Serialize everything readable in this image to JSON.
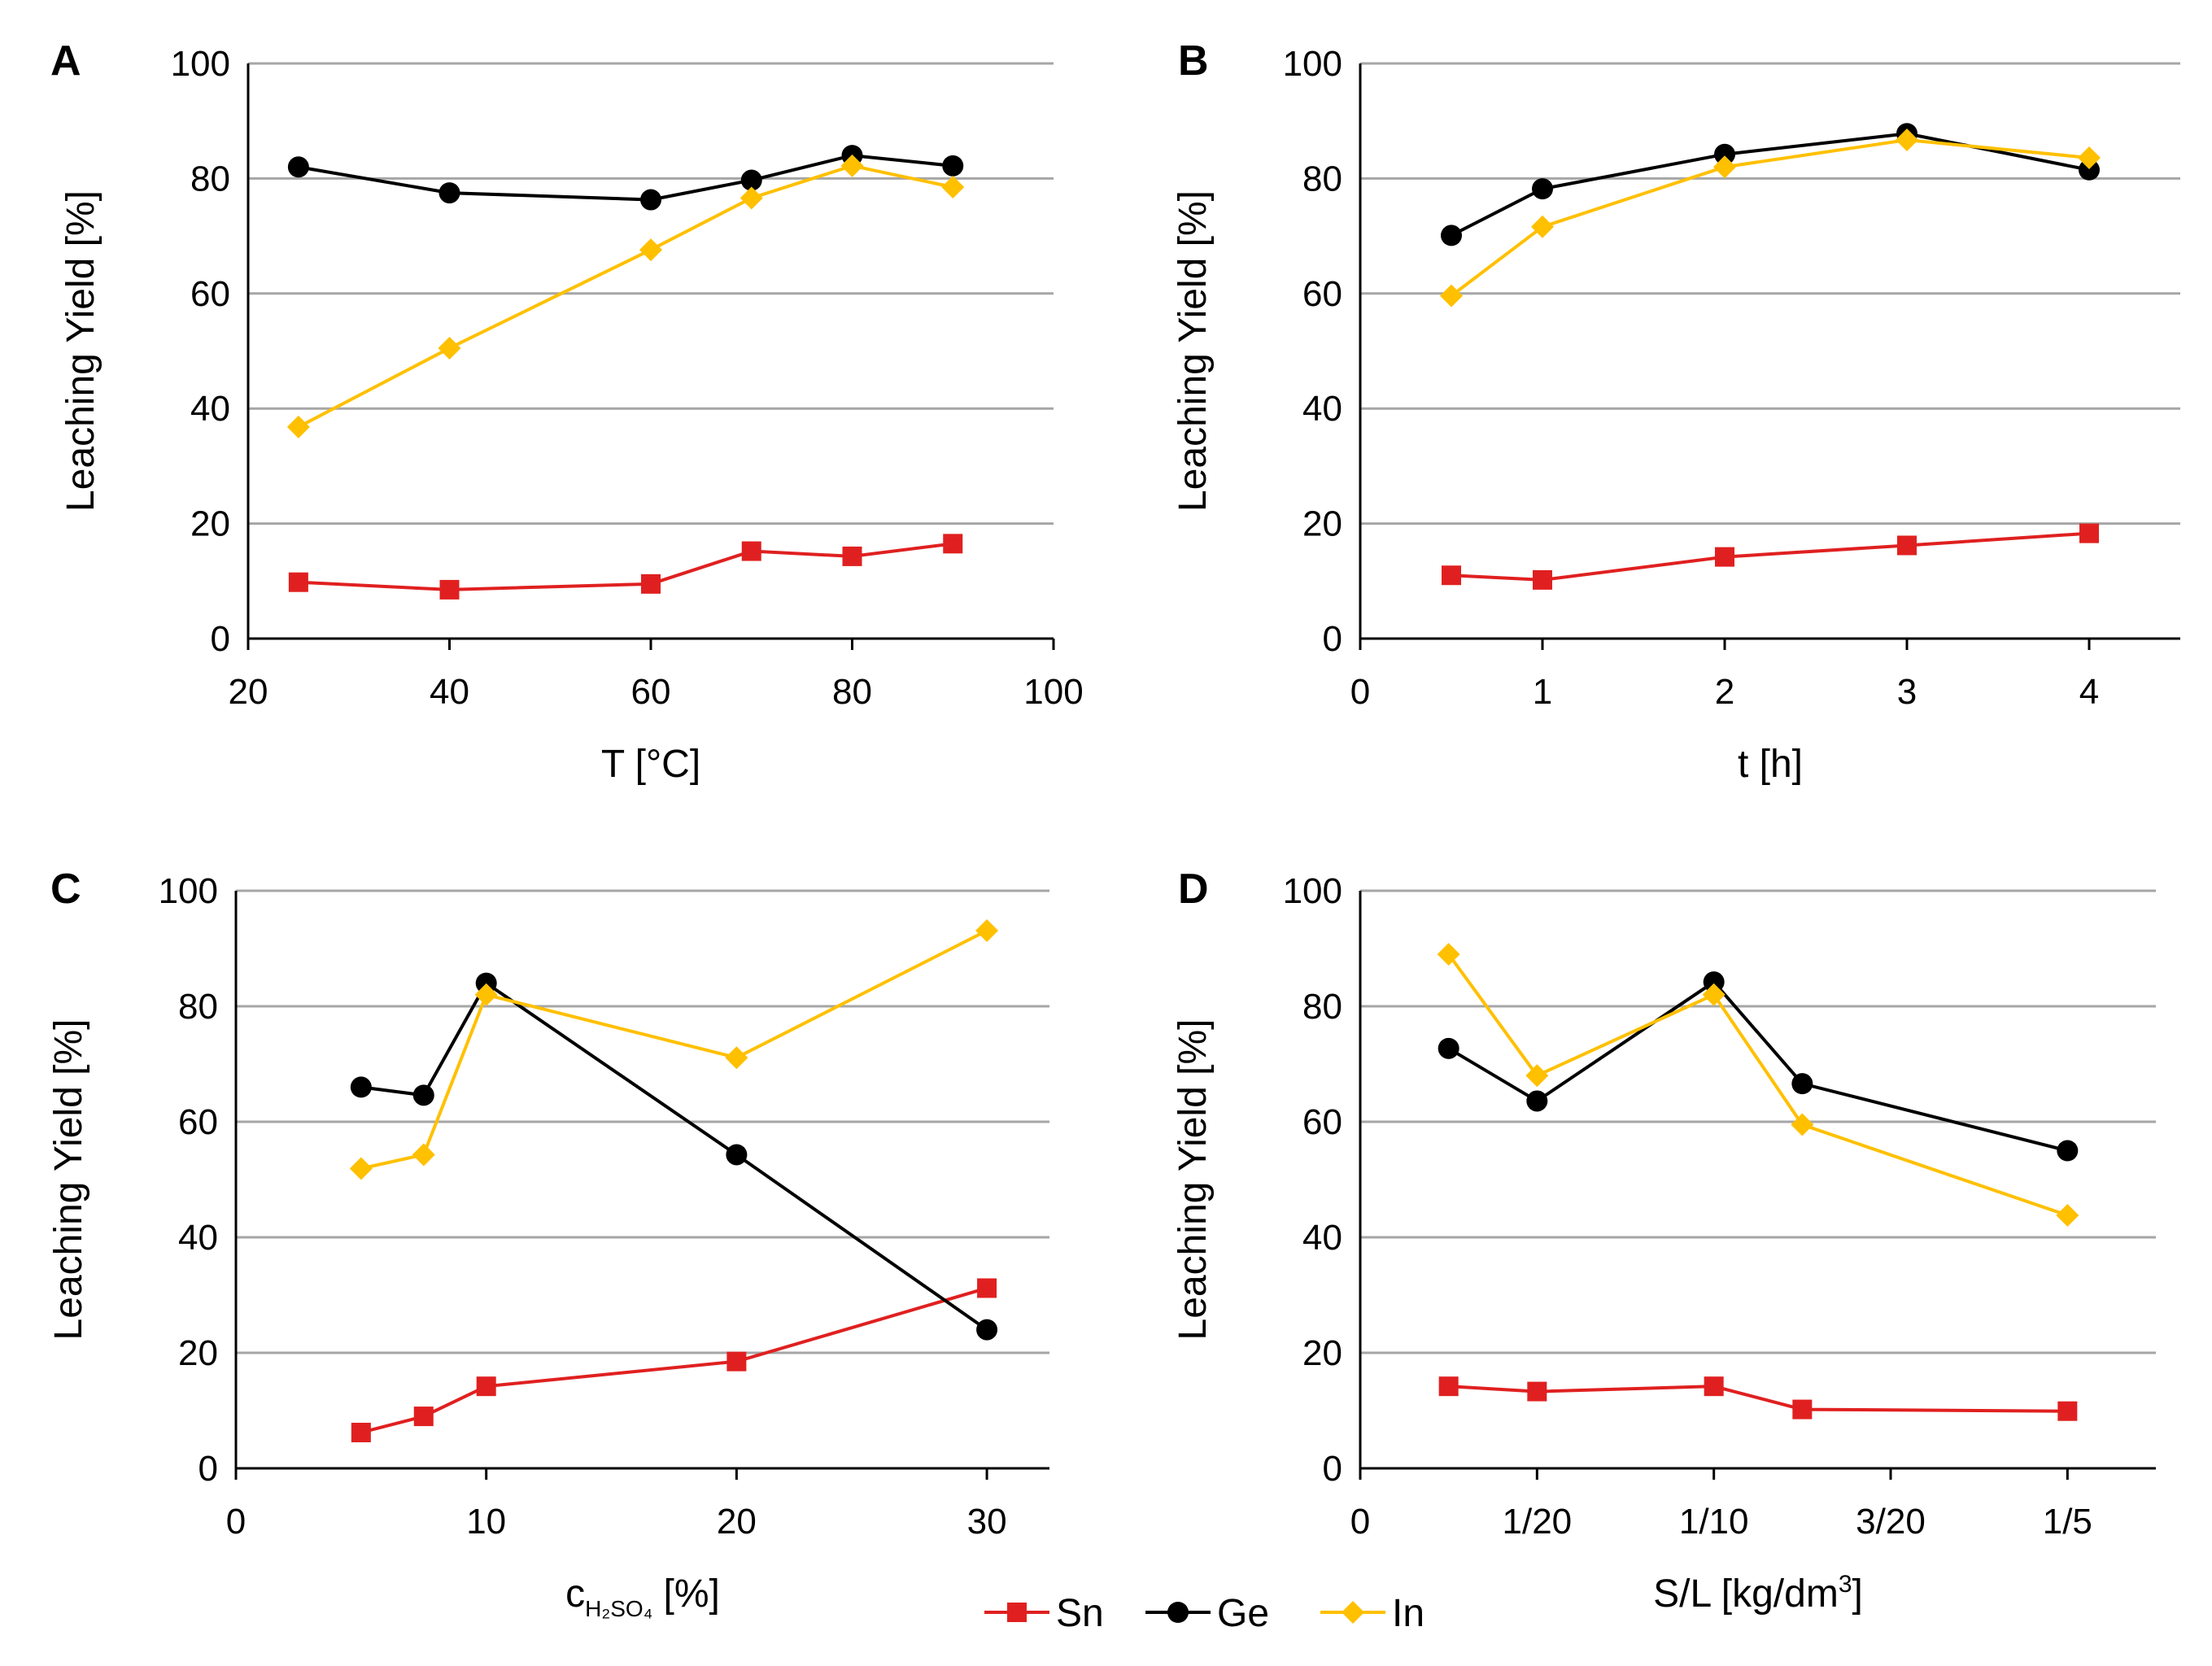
{
  "figure": {
    "legend": {
      "position": "bottom-center",
      "entries": [
        {
          "name": "Sn",
          "color": "#e02020",
          "marker": "square"
        },
        {
          "name": "Ge",
          "color": "#000000",
          "marker": "circle"
        },
        {
          "name": "In",
          "color": "#ffc000",
          "marker": "diamond"
        }
      ]
    }
  },
  "chart_data": [
    {
      "panel": "A",
      "type": "line",
      "xlabel": "T [°C]",
      "ylabel": "Leaching Yield [%]",
      "xlim": [
        20,
        100
      ],
      "ylim": [
        0,
        100
      ],
      "xticks": [
        "20",
        "40",
        "60",
        "80",
        "100"
      ],
      "yticks": [
        "0",
        "20",
        "40",
        "60",
        "80",
        "100"
      ],
      "grid": true,
      "series": [
        {
          "name": "Sn",
          "x": [
            25,
            40,
            60,
            70,
            80,
            90
          ],
          "values": [
            9.8,
            8.5,
            9.5,
            15.2,
            14.3,
            16.5
          ]
        },
        {
          "name": "Ge",
          "x": [
            25,
            40,
            60,
            70,
            80,
            90
          ],
          "values": [
            82,
            77.5,
            76.3,
            79.7,
            84,
            82.2
          ]
        },
        {
          "name": "In",
          "x": [
            25,
            40,
            60,
            70,
            80,
            90
          ],
          "values": [
            36.8,
            50.5,
            67.6,
            76.6,
            82.2,
            78.5
          ]
        }
      ]
    },
    {
      "panel": "B",
      "type": "line",
      "xlabel": "t [h]",
      "ylabel": "Leaching Yield [%]",
      "xlim": [
        0,
        4.5
      ],
      "ylim": [
        0,
        100
      ],
      "xticks": [
        "0",
        "1",
        "2",
        "3",
        "4"
      ],
      "yticks": [
        "0",
        "20",
        "40",
        "60",
        "80",
        "100"
      ],
      "grid": true,
      "series": [
        {
          "name": "Sn",
          "x": [
            0.5,
            1,
            2,
            3,
            4
          ],
          "values": [
            11,
            10.2,
            14.2,
            16.2,
            18.3
          ]
        },
        {
          "name": "Ge",
          "x": [
            0.5,
            1,
            2,
            3,
            4
          ],
          "values": [
            70.1,
            78.2,
            84.2,
            87.8,
            81.5
          ]
        },
        {
          "name": "In",
          "x": [
            0.5,
            1,
            2,
            3,
            4
          ],
          "values": [
            59.6,
            71.6,
            82,
            86.7,
            83.6
          ]
        }
      ]
    },
    {
      "panel": "C",
      "type": "line",
      "xlabel": "c",
      "xlabel_sub": "H₂SO₄",
      "xlabel_suffix": " [%]",
      "ylabel": "Leaching Yield [%]",
      "xlim": [
        0,
        32.5
      ],
      "ylim": [
        0,
        100
      ],
      "xticks": [
        "0",
        "10",
        "20",
        "30"
      ],
      "yticks": [
        "0",
        "20",
        "40",
        "60",
        "80",
        "100"
      ],
      "grid": true,
      "series": [
        {
          "name": "Sn",
          "x": [
            5,
            7.5,
            10,
            20,
            30
          ],
          "values": [
            6.2,
            9,
            14.2,
            18.5,
            31.2
          ]
        },
        {
          "name": "Ge",
          "x": [
            5,
            7.5,
            10,
            20,
            30
          ],
          "values": [
            66,
            64.6,
            84,
            54.3,
            24
          ]
        },
        {
          "name": "In",
          "x": [
            5,
            7.5,
            10,
            20,
            30
          ],
          "values": [
            51.9,
            54.3,
            82,
            71.1,
            93.1
          ]
        }
      ]
    },
    {
      "panel": "D",
      "type": "line",
      "xlabel": "S/L [kg/dm",
      "xlabel_sup": "3",
      "xlabel_suffix": "]",
      "ylabel": "Leaching Yield [%]",
      "xlim": [
        0,
        0.225
      ],
      "ylim": [
        0,
        100
      ],
      "xticks": [
        "0",
        "1/20",
        "1/10",
        "3/20",
        "1/5"
      ],
      "yticks": [
        "0",
        "20",
        "40",
        "60",
        "80",
        "100"
      ],
      "grid": true,
      "series": [
        {
          "name": "Sn",
          "x": [
            0.025,
            0.05,
            0.1,
            0.125,
            0.2
          ],
          "values": [
            14.2,
            13.3,
            14.2,
            10.2,
            9.9
          ]
        },
        {
          "name": "Ge",
          "x": [
            0.025,
            0.05,
            0.1,
            0.125,
            0.2
          ],
          "values": [
            72.7,
            63.6,
            84.2,
            66.6,
            55
          ]
        },
        {
          "name": "In",
          "x": [
            0.025,
            0.05,
            0.1,
            0.125,
            0.2
          ],
          "values": [
            89,
            68,
            82,
            59.5,
            43.8
          ]
        }
      ]
    }
  ]
}
